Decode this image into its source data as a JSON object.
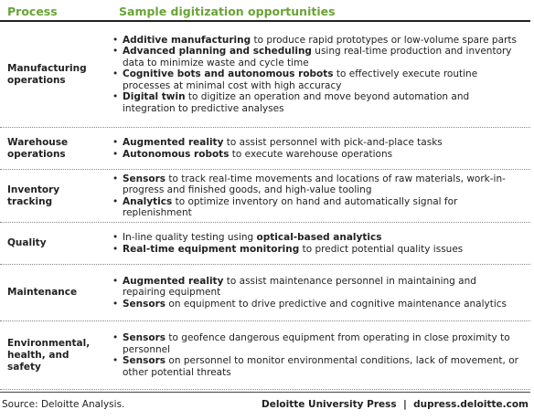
{
  "header": {
    "process": "Process",
    "opportunities": "Sample digitization opportunities"
  },
  "rows": [
    {
      "process": "Manufacturing operations",
      "bullets": [
        [
          {
            "text": "Additive manufacturing",
            "strong": true
          },
          {
            "text": " to produce rapid prototypes or low-volume spare parts",
            "strong": false
          }
        ],
        [
          {
            "text": "Advanced planning and scheduling",
            "strong": true
          },
          {
            "text": " using real-time production and inventory data to minimize waste and cycle time",
            "strong": false
          }
        ],
        [
          {
            "text": "Cognitive bots and autonomous robots",
            "strong": true
          },
          {
            "text": " to effectively execute routine processes at minimal cost with high accuracy",
            "strong": false
          }
        ],
        [
          {
            "text": "Digital twin",
            "strong": true
          },
          {
            "text": " to digitize an operation and move beyond automation and integration to predictive analyses",
            "strong": false
          }
        ]
      ]
    },
    {
      "process": "Warehouse operations",
      "bullets": [
        [
          {
            "text": "Augmented reality",
            "strong": true
          },
          {
            "text": " to assist personnel with pick-and-place tasks",
            "strong": false
          }
        ],
        [
          {
            "text": "Autonomous robots",
            "strong": true
          },
          {
            "text": " to execute warehouse operations",
            "strong": false
          }
        ]
      ]
    },
    {
      "process": "Inventory tracking",
      "bullets": [
        [
          {
            "text": "Sensors",
            "strong": true
          },
          {
            "text": " to track real-time movements and locations of raw materials, work-in-progress and finished goods, and high-value tooling",
            "strong": false
          }
        ],
        [
          {
            "text": "Analytics",
            "strong": true
          },
          {
            "text": " to optimize inventory on hand and automatically signal for replenishment",
            "strong": false
          }
        ]
      ]
    },
    {
      "process": "Quality",
      "bullets": [
        [
          {
            "text": "In-line quality testing using ",
            "strong": false
          },
          {
            "text": "optical-based analytics",
            "strong": true
          }
        ],
        [
          {
            "text": "Real-time equipment monitoring",
            "strong": true
          },
          {
            "text": " to predict potential quality issues",
            "strong": false
          }
        ]
      ]
    },
    {
      "process": "Maintenance",
      "bullets": [
        [
          {
            "text": "Augmented reality",
            "strong": true
          },
          {
            "text": " to assist maintenance personnel in maintaining and repairing equipment",
            "strong": false
          }
        ],
        [
          {
            "text": "Sensors",
            "strong": true
          },
          {
            "text": " on equipment to drive predictive and cognitive maintenance analytics",
            "strong": false
          }
        ]
      ]
    },
    {
      "process": "Environmental, health, and safety",
      "bullets": [
        [
          {
            "text": "Sensors",
            "strong": true
          },
          {
            "text": " to geofence dangerous equipment from operating in close proximity to personnel",
            "strong": false
          }
        ],
        [
          {
            "text": "Sensors",
            "strong": true
          },
          {
            "text": " on personnel to monitor environmental conditions, lack of movement, or other potential threats",
            "strong": false
          }
        ]
      ]
    }
  ],
  "footer": {
    "source": "Source: Deloitte Analysis.",
    "credit": "Deloitte University Press  |  dupress.deloitte.com"
  }
}
